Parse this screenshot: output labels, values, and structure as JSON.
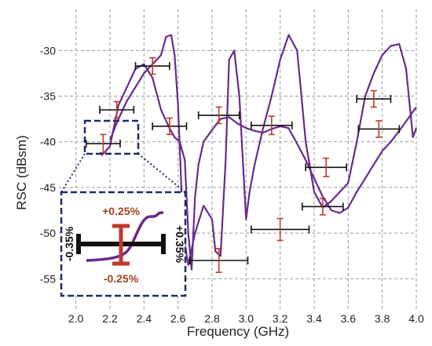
{
  "chart_data": {
    "type": "line",
    "xlabel": "Frequency (GHz)",
    "ylabel": "RSC (dBsm)",
    "xlim": [
      1.9,
      4.0
    ],
    "ylim": [
      -58.5,
      -25.5
    ],
    "x_ticks": [
      "2.0",
      "2.2",
      "2.4",
      "2.6",
      "2.8",
      "3.0",
      "3.2",
      "3.4",
      "3.6",
      "3.8",
      "4.0"
    ],
    "y_ticks": [
      "-30",
      "-35",
      "-40",
      "-45",
      "-50",
      "-55"
    ],
    "grid": "dashed",
    "line_color": "#6a2a8c",
    "errorbar_color": "#c0392b",
    "series": [
      {
        "x": [
          2.15,
          2.2,
          2.25,
          2.3,
          2.35,
          2.4,
          2.45,
          2.5,
          2.55,
          2.58,
          2.61,
          2.64,
          2.66,
          2.68,
          2.7,
          2.72,
          2.75,
          2.8,
          2.85,
          2.9,
          2.95,
          3.0,
          3.05,
          3.1,
          3.15,
          3.2,
          3.25,
          3.3,
          3.35,
          3.4,
          3.45,
          3.5,
          3.55,
          3.6,
          3.65,
          3.7,
          3.75,
          3.8,
          3.85,
          3.9,
          3.95,
          4.0
        ],
        "y": [
          -41.5,
          -40.5,
          -36,
          -34,
          -32,
          -31.5,
          -33,
          -36.5,
          -38.5,
          -39.5,
          -40,
          -42,
          -50,
          -54,
          -46,
          -42.5,
          -40,
          -38.7,
          -37.5,
          -37.3,
          -38,
          -38.5,
          -38.8,
          -39,
          -38.6,
          -38.3,
          -38.5,
          -40.2,
          -42,
          -44,
          -46,
          -47.5,
          -47.8,
          -47.2,
          -45.5,
          -44,
          -42.5,
          -41,
          -40,
          -38.8,
          -37.5,
          -36.2
        ]
      },
      {
        "x": [
          2.2,
          2.25,
          2.3,
          2.35,
          2.4,
          2.45,
          2.5,
          2.53,
          2.56,
          2.58,
          2.6,
          2.63,
          2.66,
          2.7,
          2.75,
          2.8,
          2.82,
          2.85,
          2.88,
          2.9,
          2.93,
          2.96,
          3.0,
          3.02,
          3.05,
          3.1,
          3.15,
          3.2,
          3.25,
          3.3,
          3.32,
          3.35,
          3.4,
          3.45,
          3.5,
          3.55,
          3.6,
          3.65,
          3.7,
          3.75,
          3.8,
          3.85,
          3.9,
          3.94,
          3.98,
          4.0
        ],
        "y": [
          -39.8,
          -37.5,
          -35.5,
          -34,
          -32.5,
          -31.5,
          -30.5,
          -28.5,
          -28.3,
          -30.5,
          -36,
          -50,
          -53.5,
          -50,
          -47,
          -48.5,
          -52,
          -52.5,
          -42,
          -31,
          -30,
          -35,
          -48.5,
          -45.5,
          -42.5,
          -38.5,
          -35,
          -31,
          -28.3,
          -30,
          -34,
          -40,
          -45.5,
          -47.2,
          -46.5,
          -45.5,
          -44.5,
          -40,
          -35,
          -32.5,
          -30.5,
          -29.5,
          -29.3,
          -32,
          -39.5,
          -38.5
        ]
      }
    ],
    "error_bars": [
      {
        "x": 2.24,
        "y": -36.5,
        "xerr": 0.1,
        "yerr": 0.9
      },
      {
        "x": 2.16,
        "y": -40.2,
        "xerr": 0.1,
        "yerr": 1.0
      },
      {
        "x": 2.45,
        "y": -31.7,
        "xerr": 0.1,
        "yerr": 0.9
      },
      {
        "x": 2.55,
        "y": -38.3,
        "xerr": 0.1,
        "yerr": 0.9
      },
      {
        "x": 2.84,
        "y": -53,
        "xerr": 0.17,
        "yerr": 1.3
      },
      {
        "x": 2.84,
        "y": -37.1,
        "xerr": 0.12,
        "yerr": 0.9
      },
      {
        "x": 3.15,
        "y": -38.2,
        "xerr": 0.12,
        "yerr": 1.0
      },
      {
        "x": 3.2,
        "y": -49.6,
        "xerr": 0.17,
        "yerr": 1.2
      },
      {
        "x": 3.47,
        "y": -42.8,
        "xerr": 0.12,
        "yerr": 1.0
      },
      {
        "x": 3.45,
        "y": -47.1,
        "xerr": 0.12,
        "yerr": 0.9
      },
      {
        "x": 3.75,
        "y": -35.3,
        "xerr": 0.1,
        "yerr": 0.9
      },
      {
        "x": 3.78,
        "y": -38.6,
        "xerr": 0.12,
        "yerr": 0.9
      }
    ],
    "inset": {
      "label_top": "+0.25%",
      "label_bottom": "-0.25%",
      "label_left": "-0.35%",
      "label_right": "+0.35%"
    }
  }
}
